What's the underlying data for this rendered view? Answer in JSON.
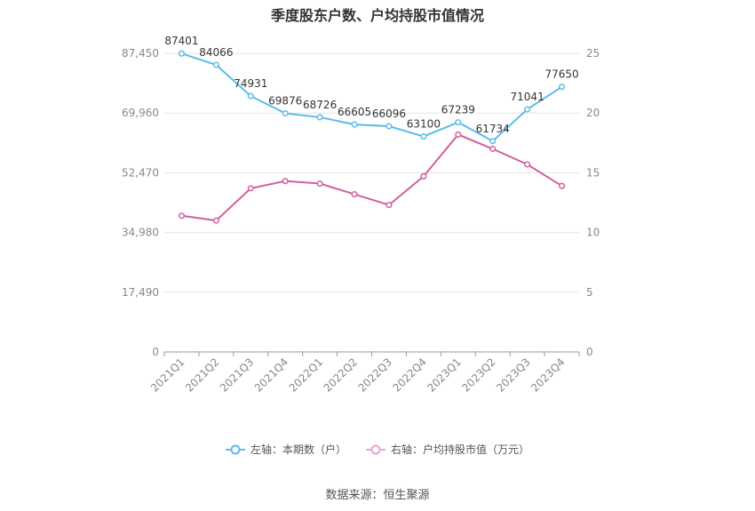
{
  "chart_data": {
    "type": "line",
    "title": "季度股东户数、户均持股市值情况",
    "categories": [
      "2021Q1",
      "2021Q2",
      "2021Q3",
      "2021Q4",
      "2022Q1",
      "2022Q2",
      "2022Q3",
      "2022Q4",
      "2023Q1",
      "2023Q2",
      "2023Q3",
      "2023Q4"
    ],
    "series": [
      {
        "name": "左轴：本期数（户）",
        "axis": "left",
        "color": "#5bbcea",
        "values": [
          87401,
          84066,
          74931,
          69876,
          68726,
          66605,
          66096,
          63100,
          67239,
          61734,
          71041,
          77650
        ],
        "show_labels": true
      },
      {
        "name": "右轴：户均持股市值（万元）",
        "axis": "right",
        "color": "#d0609f",
        "values": [
          11.4,
          11.0,
          13.7,
          14.3,
          14.1,
          13.2,
          12.3,
          14.7,
          18.2,
          17.0,
          15.7,
          13.9
        ],
        "show_labels": false
      }
    ],
    "y_left": {
      "min": 0,
      "max": 87450,
      "ticks": [
        0,
        17490,
        34980,
        52470,
        69960,
        87450
      ],
      "tick_labels": [
        "0",
        "17,490",
        "34,980",
        "52,470",
        "69,960",
        "87,450"
      ]
    },
    "y_right": {
      "min": 0,
      "max": 25,
      "ticks": [
        0,
        5,
        10,
        15,
        20,
        25
      ],
      "tick_labels": [
        "0",
        "5",
        "10",
        "15",
        "20",
        "25"
      ]
    },
    "grid": true,
    "legend_position": "bottom"
  },
  "legend": {
    "left_label": "左轴：本期数（户）",
    "right_label": "右轴：户均持股市值（万元）"
  },
  "source": "数据来源：恒生聚源"
}
